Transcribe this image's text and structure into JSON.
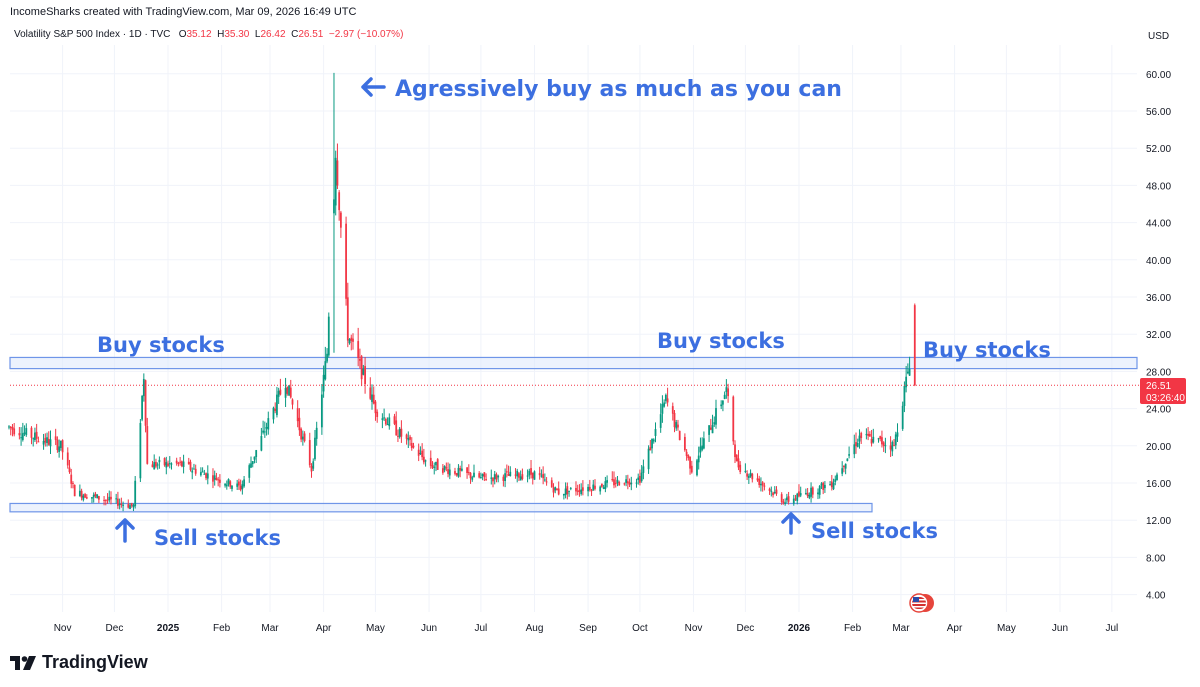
{
  "header": {
    "credit": "IncomeSharks created with TradingView.com, Mar 09, 2026 16:49 UTC",
    "symbol": "Volatility S&P 500 Index · 1D · TVC",
    "o_label": "O",
    "o_value": "35.12",
    "h_label": "H",
    "h_value": "35.30",
    "l_label": "L",
    "l_value": "26.42",
    "c_label": "C",
    "c_value": "26.51",
    "change": "−2.97 (−10.07%)",
    "currency": "USD"
  },
  "price_badge": {
    "price": "26.51",
    "countdown": "03:26:40"
  },
  "annotations": {
    "top": "Agressively buy as much as you can",
    "buy_left": "Buy stocks",
    "buy_mid": "Buy stocks",
    "buy_right": "Buy stocks",
    "sell_left": "Sell stocks",
    "sell_right": "Sell stocks"
  },
  "footer": {
    "logo_text": "TradingView"
  },
  "colors": {
    "up": "#089981",
    "down": "#f23645",
    "annotation": "#3c6fe0",
    "zone_fill": "#dce7fb",
    "zone_stroke": "#6f95e8"
  },
  "chart_data": {
    "type": "candlestick",
    "title": "Volatility S&P 500 Index · 1D · TVC",
    "currency": "USD",
    "y_ticks": [
      "60.00",
      "56.00",
      "52.00",
      "48.00",
      "44.00",
      "40.00",
      "36.00",
      "32.00",
      "28.00",
      "24.00",
      "20.00",
      "16.00",
      "12.00",
      "8.00",
      "4.00"
    ],
    "x_ticks": [
      {
        "label": "Nov",
        "bold": false
      },
      {
        "label": "Dec",
        "bold": false
      },
      {
        "label": "2025",
        "bold": true
      },
      {
        "label": "Feb",
        "bold": false
      },
      {
        "label": "Mar",
        "bold": false
      },
      {
        "label": "Apr",
        "bold": false
      },
      {
        "label": "May",
        "bold": false
      },
      {
        "label": "Jun",
        "bold": false
      },
      {
        "label": "Jul",
        "bold": false
      },
      {
        "label": "Aug",
        "bold": false
      },
      {
        "label": "Sep",
        "bold": false
      },
      {
        "label": "Oct",
        "bold": false
      },
      {
        "label": "Nov",
        "bold": false
      },
      {
        "label": "Dec",
        "bold": false
      },
      {
        "label": "2026",
        "bold": true
      },
      {
        "label": "Feb",
        "bold": false
      },
      {
        "label": "Mar",
        "bold": false
      },
      {
        "label": "Apr",
        "bold": false
      },
      {
        "label": "May",
        "bold": false
      },
      {
        "label": "Jun",
        "bold": false
      },
      {
        "label": "Jul",
        "bold": false
      }
    ],
    "y_range": [
      2,
      64
    ],
    "last_price": 26.51,
    "zones": [
      {
        "name": "buy zone",
        "low": 28.3,
        "high": 29.5
      },
      {
        "name": "sell zone",
        "low": 12.9,
        "high": 13.8
      }
    ],
    "key_points": [
      {
        "date": "2024-10-01",
        "value": 22
      },
      {
        "date": "2024-10-15",
        "value": 21
      },
      {
        "date": "2024-10-31",
        "value": 20
      },
      {
        "date": "2024-11-08",
        "value": 15
      },
      {
        "date": "2024-12-12",
        "value": 13.5
      },
      {
        "date": "2024-12-18",
        "value": 27.6
      },
      {
        "date": "2024-12-20",
        "value": 18
      },
      {
        "date": "2025-01-08",
        "value": 18
      },
      {
        "date": "2025-02-12",
        "value": 15.5
      },
      {
        "date": "2025-03-10",
        "value": 27
      },
      {
        "date": "2025-03-25",
        "value": 17.5
      },
      {
        "date": "2025-04-03",
        "value": 30
      },
      {
        "date": "2025-04-08",
        "value": 52
      },
      {
        "date": "2025-04-15",
        "value": 32
      },
      {
        "date": "2025-05-01",
        "value": 24
      },
      {
        "date": "2025-06-01",
        "value": 18
      },
      {
        "date": "2025-07-01",
        "value": 16.5
      },
      {
        "date": "2025-08-01",
        "value": 17
      },
      {
        "date": "2025-08-15",
        "value": 15
      },
      {
        "date": "2025-10-01",
        "value": 16.5
      },
      {
        "date": "2025-10-16",
        "value": 25
      },
      {
        "date": "2025-10-31",
        "value": 17.5
      },
      {
        "date": "2025-11-20",
        "value": 26
      },
      {
        "date": "2025-11-26",
        "value": 18
      },
      {
        "date": "2025-12-24",
        "value": 14
      },
      {
        "date": "2026-01-20",
        "value": 16
      },
      {
        "date": "2026-02-05",
        "value": 21
      },
      {
        "date": "2026-02-25",
        "value": 20
      },
      {
        "date": "2026-03-06",
        "value": 29
      },
      {
        "date": "2026-03-09",
        "value": 26.5
      }
    ],
    "highlights": [
      {
        "date": "2025-04-07",
        "high": 60.1,
        "low": 30
      },
      {
        "date": "2026-03-09",
        "open": 35.12,
        "high": 35.3,
        "low": 26.42,
        "close": 26.51
      }
    ]
  }
}
